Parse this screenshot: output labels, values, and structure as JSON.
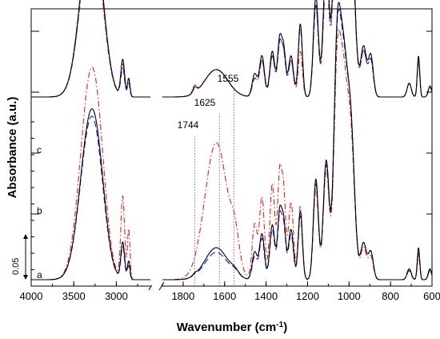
{
  "chart_data": {
    "type": "line",
    "xlabel": "Wavenumber (cm",
    "xlabel_sup": "-1",
    "xlabel_close": ")",
    "ylabel": "Absorbance (a.u.)",
    "x_axis_reversed": true,
    "x_segments": [
      {
        "xlim": [
          4000,
          2600
        ],
        "ticks": [
          4000,
          3500,
          3000
        ]
      },
      {
        "xlim": [
          1900,
          600
        ],
        "ticks": [
          1800,
          1600,
          1400,
          1200,
          1000,
          800,
          600
        ]
      }
    ],
    "tick_labels": [
      "4000",
      "3500",
      "3000",
      "1800",
      "1600",
      "1400",
      "1200",
      "1000",
      "800",
      "600"
    ],
    "axis_break": true,
    "y_unit": "absorbance (a.u.)",
    "scale_bar": {
      "label": "0.05",
      "value": 0.05
    },
    "annotations": [
      {
        "label": "1744",
        "x": 1744
      },
      {
        "label": "1625",
        "x": 1625
      },
      {
        "label": "1555",
        "x": 1555
      }
    ],
    "groups": [
      {
        "label": "a",
        "baseline": 0.0
      },
      {
        "label": "b",
        "baseline": 0.2
      },
      {
        "label": "c",
        "baseline": 0.38
      }
    ],
    "series_styles": [
      {
        "key": "s1",
        "color": "#000000",
        "dash": "solid"
      },
      {
        "key": "s2",
        "color": "#1b1bd6",
        "dash": "long-dash"
      },
      {
        "key": "s3",
        "color": "#e0201b",
        "dash": "dash-dot"
      }
    ],
    "peaks": [
      {
        "center": 3310,
        "width": 120,
        "a": [
          0.165,
          0.16,
          0.205
        ],
        "b": [
          0.17,
          0.165,
          0.16
        ],
        "c": [
          0.17,
          0.165,
          0.16
        ]
      },
      {
        "center": 3200,
        "width": 90,
        "a": [
          0.04,
          0.035,
          0.05
        ],
        "b": [
          0.04,
          0.04,
          0.035
        ],
        "c": [
          0.04,
          0.04,
          0.035
        ]
      },
      {
        "center": 2925,
        "width": 22,
        "a": [
          0.04,
          0.035,
          0.09
        ],
        "b": [
          0.04,
          0.03,
          0.035
        ],
        "c": [
          0.04,
          0.03,
          0.03
        ]
      },
      {
        "center": 2855,
        "width": 15,
        "a": [
          0.02,
          0.015,
          0.055
        ],
        "b": [
          0.02,
          0.015,
          0.02
        ],
        "c": [
          0.02,
          0.015,
          0.015
        ]
      },
      {
        "center": 1744,
        "width": 10,
        "a": [
          0.002,
          0.002,
          0.0
        ],
        "b": [
          0.006,
          0.005,
          0.008
        ],
        "c": [
          0.0,
          0.0,
          0.0
        ]
      },
      {
        "center": 1640,
        "width": 55,
        "a": [
          0.035,
          0.03,
          0.15
        ],
        "b": [
          0.03,
          0.03,
          0.03
        ],
        "c": [
          0.03,
          0.03,
          0.03
        ]
      },
      {
        "center": 1550,
        "width": 20,
        "a": [
          0.005,
          0.005,
          0.03
        ],
        "b": [
          0.0,
          0.0,
          0.0
        ],
        "c": [
          0.0,
          0.0,
          0.0
        ]
      },
      {
        "center": 1455,
        "width": 12,
        "a": [
          0.03,
          0.025,
          0.06
        ],
        "b": [
          0.025,
          0.02,
          0.02
        ],
        "c": [
          0.025,
          0.02,
          0.02
        ]
      },
      {
        "center": 1420,
        "width": 12,
        "a": [
          0.05,
          0.045,
          0.09
        ],
        "b": [
          0.045,
          0.04,
          0.04
        ],
        "c": [
          0.045,
          0.04,
          0.04
        ]
      },
      {
        "center": 1370,
        "width": 12,
        "a": [
          0.06,
          0.055,
          0.105
        ],
        "b": [
          0.05,
          0.045,
          0.045
        ],
        "c": [
          0.05,
          0.045,
          0.045
        ]
      },
      {
        "center": 1335,
        "width": 10,
        "a": [
          0.07,
          0.065,
          0.11
        ],
        "b": [
          0.06,
          0.055,
          0.055
        ],
        "c": [
          0.06,
          0.055,
          0.055
        ]
      },
      {
        "center": 1315,
        "width": 10,
        "a": [
          0.06,
          0.055,
          0.09
        ],
        "b": [
          0.05,
          0.045,
          0.045
        ],
        "c": [
          0.05,
          0.045,
          0.045
        ]
      },
      {
        "center": 1280,
        "width": 12,
        "a": [
          0.055,
          0.05,
          0.085
        ],
        "b": [
          0.045,
          0.04,
          0.04
        ],
        "c": [
          0.045,
          0.04,
          0.04
        ]
      },
      {
        "center": 1235,
        "width": 10,
        "a": [
          0.075,
          0.07,
          0.08
        ],
        "b": [
          0.08,
          0.075,
          0.05
        ],
        "c": [
          0.05,
          0.045,
          0.045
        ]
      },
      {
        "center": 1160,
        "width": 12,
        "a": [
          0.11,
          0.105,
          0.1
        ],
        "b": [
          0.11,
          0.1,
          0.1
        ],
        "c": [
          0.1,
          0.095,
          0.095
        ]
      },
      {
        "center": 1110,
        "width": 14,
        "a": [
          0.13,
          0.125,
          0.12
        ],
        "b": [
          0.15,
          0.14,
          0.13
        ],
        "c": [
          0.14,
          0.13,
          0.13
        ]
      },
      {
        "center": 1060,
        "width": 15,
        "a": [
          0.18,
          0.175,
          0.16
        ],
        "b": [
          0.2,
          0.19,
          0.18
        ],
        "c": [
          0.2,
          0.19,
          0.19
        ]
      },
      {
        "center": 1030,
        "width": 22,
        "a": [
          0.24,
          0.235,
          0.22
        ],
        "b": [
          0.265,
          0.26,
          0.245
        ],
        "c": [
          0.28,
          0.275,
          0.27
        ]
      },
      {
        "center": 990,
        "width": 18,
        "a": [
          0.14,
          0.14,
          0.13
        ],
        "b": [
          0.17,
          0.165,
          0.16
        ],
        "c": [
          0.18,
          0.175,
          0.17
        ]
      },
      {
        "center": 930,
        "width": 14,
        "a": [
          0.04,
          0.04,
          0.035
        ],
        "b": [
          0.055,
          0.05,
          0.05
        ],
        "c": [
          0.05,
          0.05,
          0.045
        ]
      },
      {
        "center": 895,
        "width": 12,
        "a": [
          0.03,
          0.03,
          0.025
        ],
        "b": [
          0.045,
          0.04,
          0.04
        ],
        "c": [
          0.04,
          0.04,
          0.035
        ]
      },
      {
        "center": 710,
        "width": 10,
        "a": [
          0.012,
          0.01,
          0.01
        ],
        "b": [
          0.015,
          0.015,
          0.015
        ],
        "c": [
          0.015,
          0.015,
          0.015
        ]
      },
      {
        "center": 665,
        "width": 6,
        "a": [
          0.035,
          0.03,
          0.028
        ],
        "b": [
          0.045,
          0.04,
          0.04
        ],
        "c": [
          0.04,
          0.035,
          0.035
        ]
      },
      {
        "center": 610,
        "width": 8,
        "a": [
          0.012,
          0.01,
          0.01
        ],
        "b": [
          0.012,
          0.012,
          0.01
        ],
        "c": [
          0.012,
          0.012,
          0.01
        ]
      }
    ]
  }
}
